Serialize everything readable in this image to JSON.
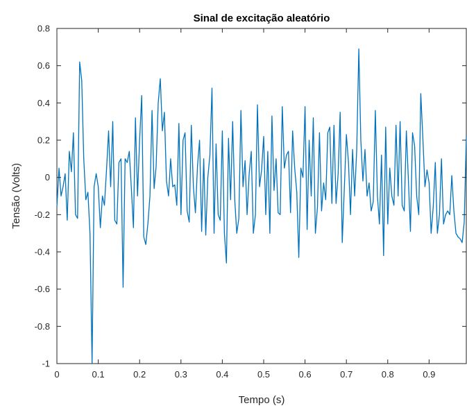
{
  "chart_data": {
    "type": "line",
    "title": "Sinal de excitação aleatório",
    "xlabel": "Tempo (s)",
    "ylabel": "Tensão (Volts)",
    "xlim": [
      0,
      0.99
    ],
    "ylim": [
      -1,
      0.8
    ],
    "xticks": [
      0,
      0.1,
      0.2,
      0.3,
      0.4,
      0.5,
      0.6,
      0.7,
      0.8,
      0.9
    ],
    "xtick_labels": [
      "0",
      "0.1",
      "0.2",
      "0.3",
      "0.4",
      "0.5",
      "0.6",
      "0.7",
      "0.8",
      "0.9"
    ],
    "yticks": [
      -1,
      -0.8,
      -0.6,
      -0.4,
      -0.2,
      0,
      0.2,
      0.4,
      0.6,
      0.8
    ],
    "ytick_labels": [
      "-1",
      "-0.8",
      "-0.6",
      "-0.4",
      "-0.2",
      "0",
      "0.2",
      "0.4",
      "0.6",
      "0.8"
    ],
    "grid": false,
    "box": true,
    "line_color": "#0072BD",
    "series": [
      {
        "x": [
          0,
          0.005,
          0.01,
          0.015,
          0.02,
          0.025,
          0.03,
          0.035,
          0.04,
          0.045,
          0.05,
          0.055,
          0.06,
          0.065,
          0.07,
          0.075,
          0.08,
          0.085,
          0.09,
          0.095,
          0.1,
          0.105,
          0.11,
          0.115,
          0.12,
          0.125,
          0.13,
          0.135,
          0.14,
          0.145,
          0.15,
          0.155,
          0.16,
          0.165,
          0.17,
          0.175,
          0.18,
          0.185,
          0.19,
          0.195,
          0.2,
          0.205,
          0.21,
          0.215,
          0.22,
          0.225,
          0.23,
          0.235,
          0.24,
          0.245,
          0.25,
          0.255,
          0.26,
          0.265,
          0.27,
          0.275,
          0.28,
          0.285,
          0.29,
          0.295,
          0.3,
          0.305,
          0.31,
          0.315,
          0.32,
          0.325,
          0.33,
          0.335,
          0.34,
          0.345,
          0.35,
          0.355,
          0.36,
          0.365,
          0.37,
          0.375,
          0.38,
          0.385,
          0.39,
          0.395,
          0.4,
          0.405,
          0.41,
          0.415,
          0.42,
          0.425,
          0.43,
          0.435,
          0.44,
          0.445,
          0.45,
          0.455,
          0.46,
          0.465,
          0.47,
          0.475,
          0.48,
          0.485,
          0.49,
          0.495,
          0.5,
          0.505,
          0.51,
          0.515,
          0.52,
          0.525,
          0.53,
          0.535,
          0.54,
          0.545,
          0.55,
          0.555,
          0.56,
          0.565,
          0.57,
          0.575,
          0.58,
          0.585,
          0.59,
          0.595,
          0.6,
          0.605,
          0.61,
          0.615,
          0.62,
          0.625,
          0.63,
          0.635,
          0.64,
          0.645,
          0.65,
          0.655,
          0.66,
          0.665,
          0.67,
          0.675,
          0.68,
          0.685,
          0.69,
          0.695,
          0.7,
          0.705,
          0.71,
          0.715,
          0.72,
          0.725,
          0.73,
          0.735,
          0.74,
          0.745,
          0.75,
          0.755,
          0.76,
          0.765,
          0.77,
          0.775,
          0.78,
          0.785,
          0.79,
          0.795,
          0.8,
          0.805,
          0.81,
          0.815,
          0.82,
          0.825,
          0.83,
          0.835,
          0.84,
          0.845,
          0.85,
          0.855,
          0.86,
          0.865,
          0.87,
          0.875,
          0.88,
          0.885,
          0.89,
          0.895,
          0.9,
          0.905,
          0.91,
          0.915,
          0.92,
          0.925,
          0.93,
          0.935,
          0.94,
          0.945,
          0.95,
          0.955,
          0.96,
          0.965,
          0.97,
          0.975,
          0.98,
          0.985,
          0.99
        ],
        "y": [
          -0.16,
          0.05,
          -0.1,
          -0.05,
          0.02,
          -0.23,
          0.14,
          0.03,
          0.24,
          -0.2,
          -0.22,
          0.62,
          0.52,
          0.1,
          -0.12,
          -0.08,
          -0.3,
          -1.0,
          -0.05,
          0.02,
          -0.05,
          -0.27,
          -0.1,
          -0.15,
          0.04,
          0.25,
          -0.05,
          0.3,
          -0.23,
          -0.25,
          0.08,
          0.1,
          -0.59,
          0.1,
          0.08,
          0.14,
          -0.06,
          -0.27,
          0.32,
          -0.1,
          0.2,
          0.44,
          -0.32,
          -0.36,
          -0.25,
          -0.1,
          0.36,
          -0.06,
          0.06,
          0.4,
          0.53,
          0.25,
          0.35,
          -0.02,
          -0.1,
          0.1,
          -0.05,
          -0.04,
          -0.15,
          0.29,
          -0.2,
          0.2,
          0.24,
          -0.18,
          -0.24,
          0.28,
          -0.05,
          -0.19,
          0.06,
          0.2,
          -0.29,
          0.1,
          -0.31,
          0.0,
          0.12,
          0.48,
          -0.3,
          0.18,
          -0.2,
          -0.23,
          0.25,
          -0.3,
          -0.46,
          0.21,
          -0.12,
          0.3,
          -0.12,
          -0.3,
          -0.22,
          0.36,
          -0.05,
          0.09,
          -0.2,
          0.02,
          0.14,
          -0.3,
          -0.2,
          0.39,
          -0.05,
          0.04,
          0.22,
          -0.2,
          0.14,
          -0.3,
          0.33,
          -0.07,
          0.1,
          -0.19,
          -0.2,
          0.38,
          0.05,
          0.12,
          0.14,
          -0.19,
          0.25,
          0.05,
          -0.08,
          -0.43,
          0.05,
          0.0,
          0.38,
          -0.28,
          0.2,
          -0.1,
          0.32,
          -0.3,
          -0.16,
          0.24,
          -0.18,
          -0.03,
          -0.12,
          0.24,
          0.27,
          -0.14,
          0.28,
          -0.14,
          0.02,
          0.35,
          -0.35,
          -0.06,
          0.23,
          0.08,
          -0.2,
          0.15,
          -0.1,
          0.15,
          0.69,
          0.2,
          -0.02,
          0.15,
          -0.1,
          -0.03,
          -0.18,
          -0.13,
          0.36,
          -0.1,
          -0.25,
          0.12,
          -0.42,
          0.27,
          -0.25,
          0.05,
          -0.1,
          -0.15,
          0.28,
          -0.1,
          0.3,
          -0.15,
          -0.18,
          0.25,
          -0.02,
          -0.29,
          0.24,
          0.17,
          -0.1,
          -0.2,
          0.45,
          0.21,
          -0.05,
          0.04,
          -0.03,
          -0.3,
          -0.16,
          0.08,
          -0.3,
          -0.2,
          0.1,
          -0.25,
          -0.2,
          -0.18,
          -0.2,
          0.01,
          -0.18,
          -0.3,
          -0.32,
          -0.33,
          -0.35,
          -0.24,
          0.22
        ]
      }
    ]
  }
}
